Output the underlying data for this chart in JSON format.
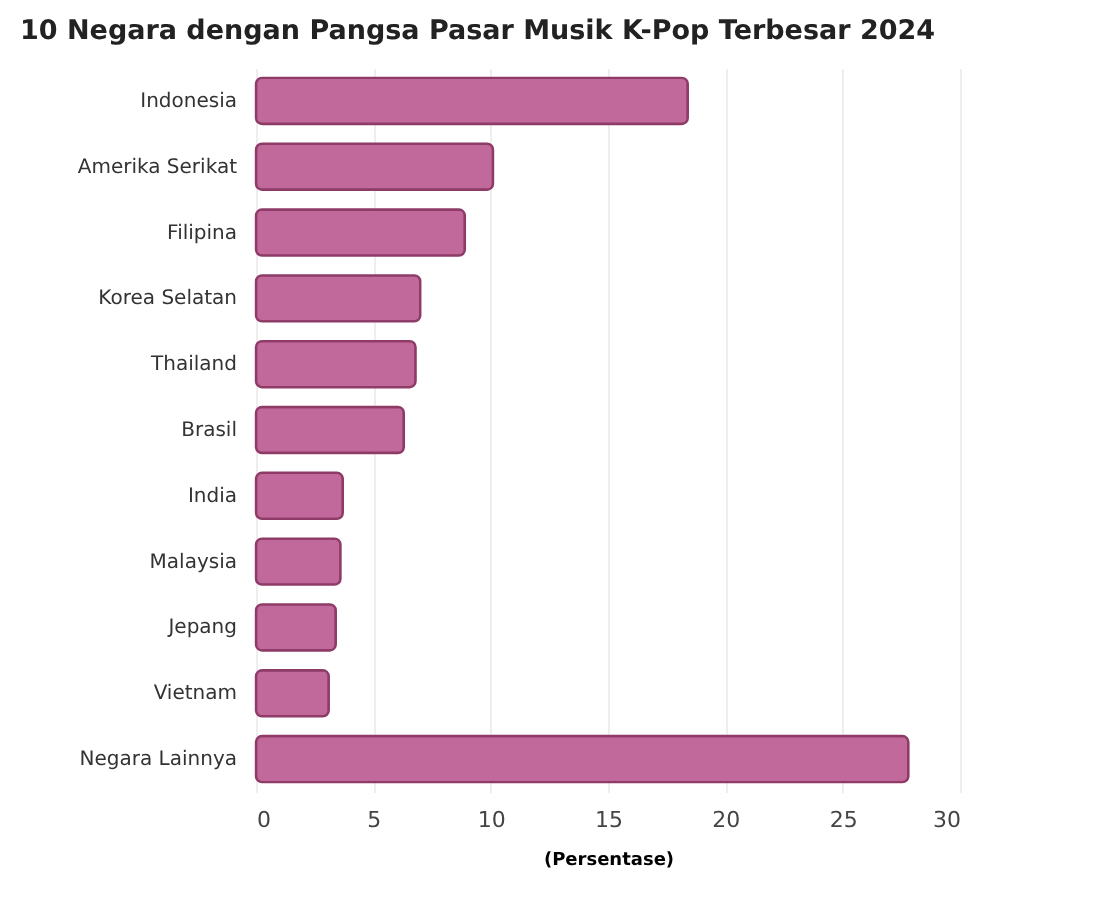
{
  "chart_data": {
    "type": "bar",
    "orientation": "horizontal",
    "title": "10 Negara dengan Pangsa Pasar Musik K-Pop Terbesar 2024",
    "xlabel": "(Persentase)",
    "categories": [
      "Indonesia",
      "Amerika Serikat",
      "Filipina",
      "Korea Selatan",
      "Thailand",
      "Brasil",
      "India",
      "Malaysia",
      "Jepang",
      "Vietnam",
      "Negara Lainnya"
    ],
    "values": [
      18.4,
      10.1,
      8.9,
      7.0,
      6.8,
      6.3,
      3.7,
      3.6,
      3.4,
      3.1,
      27.8
    ],
    "color": "#c2699c",
    "xlim": [
      0,
      30
    ],
    "xticks": [
      0,
      5,
      10,
      15,
      20,
      25,
      30
    ],
    "grid": "x"
  }
}
